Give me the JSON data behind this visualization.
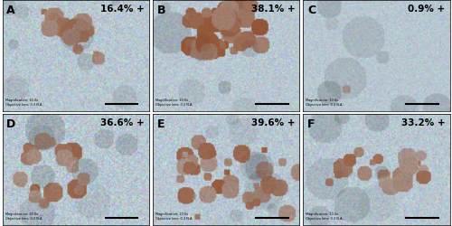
{
  "panels": [
    {
      "label": "A",
      "percent": "16.4% +",
      "row": 0,
      "col": 0
    },
    {
      "label": "B",
      "percent": "38.1% +",
      "row": 0,
      "col": 1
    },
    {
      "label": "C",
      "percent": "0.9% +",
      "row": 0,
      "col": 2
    },
    {
      "label": "D",
      "percent": "36.6% +",
      "row": 1,
      "col": 0
    },
    {
      "label": "E",
      "percent": "39.6% +",
      "row": 1,
      "col": 1
    },
    {
      "label": "F",
      "percent": "33.2% +",
      "row": 1,
      "col": 2
    }
  ],
  "bg_color": "#b8c8d0",
  "stain_color": "#8B4513",
  "border_color": "#000000",
  "label_fontsize": 9,
  "percent_fontsize": 7.5,
  "figsize": [
    5.0,
    2.51
  ],
  "dpi": 100,
  "outer_border_color": "#cccccc",
  "scale_bar_color": "#000000"
}
